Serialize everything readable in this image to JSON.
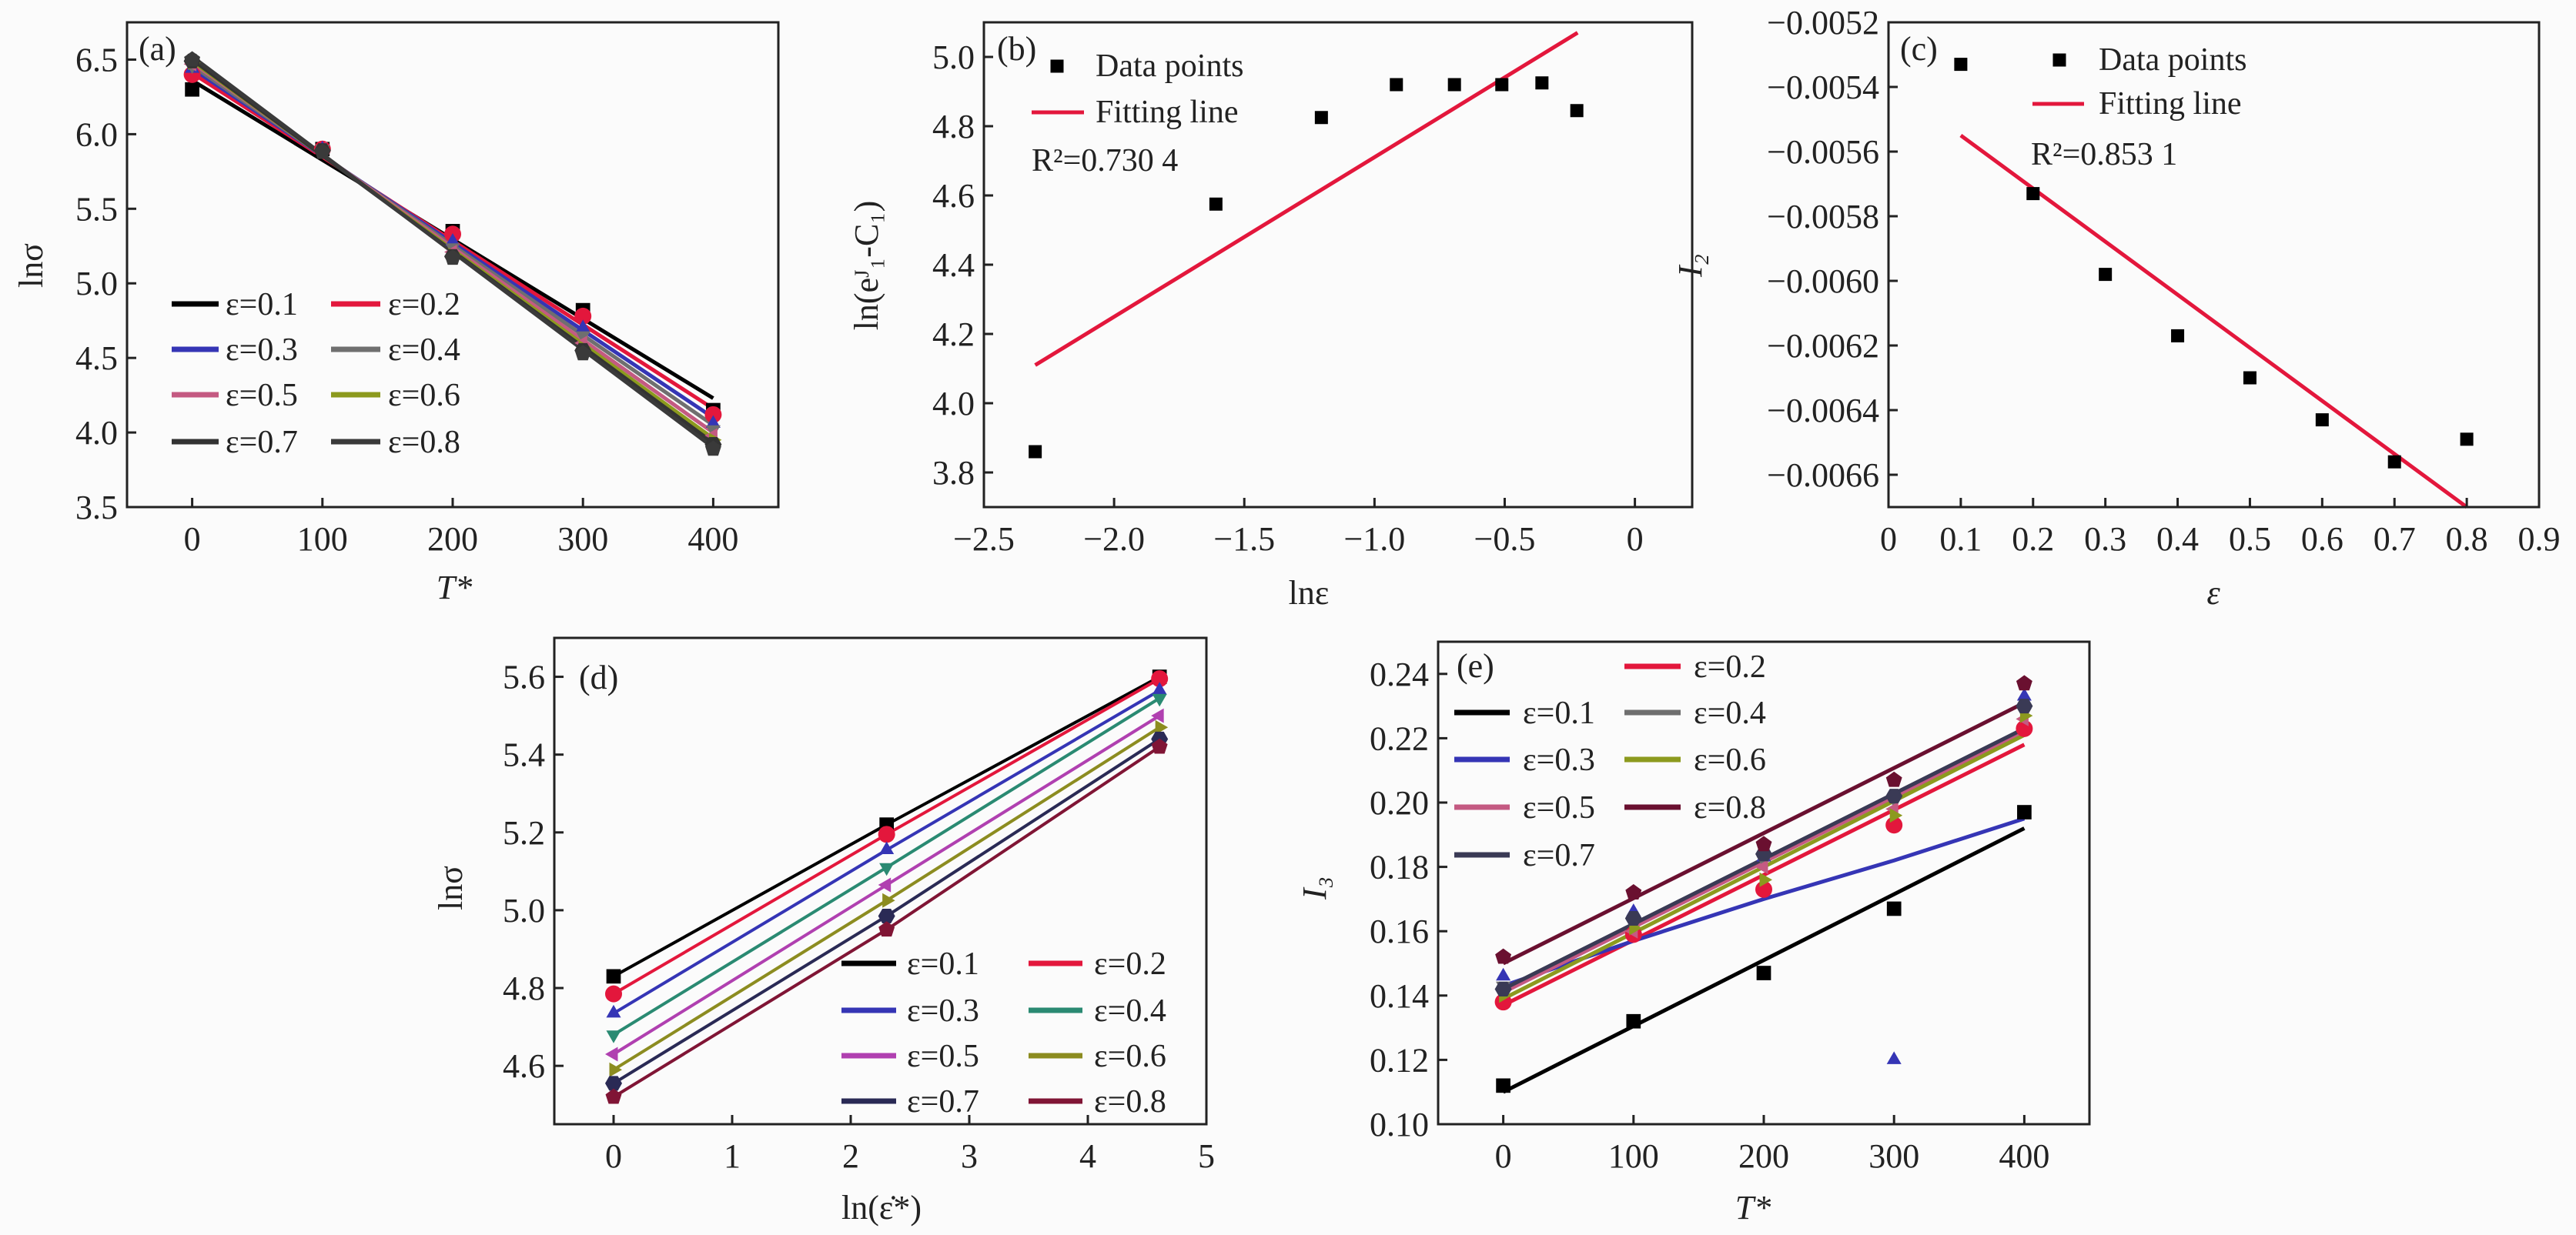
{
  "chart_data": [
    {
      "id": "a",
      "type": "line",
      "panel_label": "(a)",
      "xlabel": "T*",
      "ylabel": "lnσ",
      "xlim": [
        -50,
        450
      ],
      "ylim": [
        3.5,
        6.75
      ],
      "xticks": [
        0,
        100,
        200,
        300,
        400
      ],
      "xtick_labels": [
        "0",
        "100",
        "200",
        "300",
        "400"
      ],
      "yticks": [
        3.5,
        4.0,
        4.5,
        5.0,
        5.5,
        6.0,
        6.5
      ],
      "ytick_labels": [
        "3.5",
        "4.0",
        "4.5",
        "5.0",
        "5.5",
        "6.0",
        "6.5"
      ],
      "legend_placement": "lower-left",
      "x": [
        0,
        100,
        200,
        300,
        400
      ],
      "series": [
        {
          "name": "ε=0.1",
          "color": "#000000",
          "marker": "square",
          "points": [
            6.3,
            5.9,
            5.35,
            4.82,
            4.15
          ],
          "fit": [
            6.36,
            4.23
          ]
        },
        {
          "name": "ε=0.2",
          "color": "#e3173c",
          "marker": "circle",
          "points": [
            6.4,
            5.9,
            5.33,
            4.78,
            4.12
          ],
          "fit": [
            6.41,
            4.16
          ]
        },
        {
          "name": "ε=0.3",
          "color": "#3535b5",
          "marker": "triangle-up",
          "points": [
            6.44,
            5.9,
            5.28,
            4.7,
            4.06
          ],
          "fit": [
            6.44,
            4.1
          ]
        },
        {
          "name": "ε=0.4",
          "color": "#6f6f6f",
          "marker": "triangle-down",
          "points": [
            6.46,
            5.9,
            5.24,
            4.65,
            4.02
          ],
          "fit": [
            6.46,
            4.05
          ]
        },
        {
          "name": "ε=0.5",
          "color": "#c45a82",
          "marker": "triangle-left",
          "points": [
            6.47,
            5.9,
            5.21,
            4.6,
            3.98
          ],
          "fit": [
            6.48,
            4.0
          ]
        },
        {
          "name": "ε=0.6",
          "color": "#8c9a1e",
          "marker": "triangle-right",
          "points": [
            6.48,
            5.89,
            5.19,
            4.57,
            3.95
          ],
          "fit": [
            6.49,
            3.96
          ]
        },
        {
          "name": "ε=0.7",
          "color": "#333333",
          "marker": "hexagon",
          "points": [
            6.49,
            5.89,
            5.18,
            4.55,
            3.92
          ],
          "fit": [
            6.5,
            3.93
          ]
        },
        {
          "name": "ε=0.8",
          "color": "#3a3a3a",
          "marker": "pentagon",
          "points": [
            6.5,
            5.88,
            5.17,
            4.53,
            3.89
          ],
          "fit": [
            6.52,
            3.9
          ]
        }
      ]
    },
    {
      "id": "b",
      "type": "scatter",
      "panel_label": "(b)",
      "xlabel": "lnε",
      "ylabel": "ln(eᴶ₁-C₁)",
      "xlim": [
        -2.5,
        0.22
      ],
      "ylim": [
        3.7,
        5.1
      ],
      "xticks": [
        -2.5,
        -2.0,
        -1.5,
        -1.0,
        -0.5,
        0
      ],
      "xtick_labels": [
        "−2.5",
        "−2.0",
        "−1.5",
        "−1.0",
        "−0.5",
        "0"
      ],
      "yticks": [
        3.8,
        4.0,
        4.2,
        4.4,
        4.6,
        4.8,
        5.0
      ],
      "ytick_labels": [
        "3.8",
        "4.0",
        "4.2",
        "4.4",
        "4.6",
        "4.8",
        "5.0"
      ],
      "legend": [
        "Data points",
        "Fitting line"
      ],
      "annotation": "R²=0.730 4",
      "x": [
        -2.303,
        -1.609,
        -1.204,
        -0.916,
        -0.693,
        -0.511,
        -0.357,
        -0.223
      ],
      "y": [
        3.86,
        4.575,
        4.825,
        4.92,
        4.92,
        4.92,
        4.925,
        4.845
      ],
      "fit": {
        "x": [
          -2.303,
          -0.22
        ],
        "y": [
          4.11,
          5.07
        ],
        "color": "#e3173c"
      }
    },
    {
      "id": "c",
      "type": "scatter",
      "panel_label": "(c)",
      "xlabel": "ε",
      "ylabel": "I₂",
      "xlim": [
        0,
        0.9
      ],
      "ylim": [
        -0.0067,
        -0.0052
      ],
      "xticks": [
        0,
        0.1,
        0.2,
        0.3,
        0.4,
        0.5,
        0.6,
        0.7,
        0.8,
        0.9
      ],
      "xtick_labels": [
        "0",
        "0.1",
        "0.2",
        "0.3",
        "0.4",
        "0.5",
        "0.6",
        "0.7",
        "0.8",
        "0.9"
      ],
      "yticks": [
        -0.0066,
        -0.0064,
        -0.0062,
        -0.006,
        -0.0058,
        -0.0056,
        -0.0054,
        -0.0052
      ],
      "ytick_labels": [
        "−0.0066",
        "−0.0064",
        "−0.0062",
        "−0.0060",
        "−0.0058",
        "−0.0056",
        "−0.0054",
        "−0.0052"
      ],
      "legend": [
        "Data points",
        "Fitting line"
      ],
      "annotation": "R²=0.853 1",
      "x": [
        0.1,
        0.2,
        0.3,
        0.4,
        0.5,
        0.6,
        0.7,
        0.8
      ],
      "y": [
        -0.00533,
        -0.00573,
        -0.00598,
        -0.00617,
        -0.0063,
        -0.00643,
        -0.00656,
        -0.00649
      ],
      "fit": {
        "x": [
          0.1,
          0.8
        ],
        "y": [
          -0.00555,
          -0.0067
        ],
        "color": "#e3173c"
      }
    },
    {
      "id": "d",
      "type": "line",
      "panel_label": "(d)",
      "xlabel": "ln(ε̇*)",
      "ylabel": "lnσ",
      "xlim": [
        -0.5,
        5
      ],
      "ylim": [
        4.45,
        5.7
      ],
      "xticks": [
        0,
        1,
        2,
        3,
        4,
        5
      ],
      "xtick_labels": [
        "0",
        "1",
        "2",
        "3",
        "4",
        "5"
      ],
      "yticks": [
        4.6,
        4.8,
        5.0,
        5.2,
        5.4,
        5.6
      ],
      "ytick_labels": [
        "4.6",
        "4.8",
        "5.0",
        "5.2",
        "5.4",
        "5.6"
      ],
      "legend_placement": "lower-right",
      "x": [
        0,
        2.303,
        4.605
      ],
      "series": [
        {
          "name": "ε=0.1",
          "color": "#000000",
          "marker": "square",
          "points": [
            4.83,
            5.22,
            5.6
          ]
        },
        {
          "name": "ε=0.2",
          "color": "#e3173c",
          "marker": "circle",
          "points": [
            4.785,
            5.195,
            5.595
          ]
        },
        {
          "name": "ε=0.3",
          "color": "#3535b5",
          "marker": "triangle-up",
          "points": [
            4.735,
            5.155,
            5.565
          ]
        },
        {
          "name": "ε=0.4",
          "color": "#2a8a72",
          "marker": "triangle-down",
          "points": [
            4.68,
            5.11,
            5.545
          ]
        },
        {
          "name": "ε=0.5",
          "color": "#b040b0",
          "marker": "triangle-left",
          "points": [
            4.63,
            5.065,
            5.5
          ]
        },
        {
          "name": "ε=0.6",
          "color": "#8c8c20",
          "marker": "triangle-right",
          "points": [
            4.59,
            5.025,
            5.47
          ]
        },
        {
          "name": "ε=0.7",
          "color": "#2a2a55",
          "marker": "hexagon",
          "points": [
            4.555,
            4.985,
            5.44
          ]
        },
        {
          "name": "ε=0.8",
          "color": "#801535",
          "marker": "pentagon",
          "points": [
            4.52,
            4.95,
            5.42
          ]
        }
      ]
    },
    {
      "id": "e",
      "type": "line",
      "panel_label": "(e)",
      "xlabel": "T*",
      "ylabel": "I₃",
      "xlim": [
        -50,
        450
      ],
      "ylim": [
        0.1,
        0.25
      ],
      "xticks": [
        0,
        100,
        200,
        300,
        400
      ],
      "xtick_labels": [
        "0",
        "100",
        "200",
        "300",
        "400"
      ],
      "yticks": [
        0.1,
        0.12,
        0.14,
        0.16,
        0.18,
        0.2,
        0.22,
        0.24
      ],
      "ytick_labels": [
        "0.10",
        "0.12",
        "0.14",
        "0.16",
        "0.18",
        "0.20",
        "0.22",
        "0.24"
      ],
      "legend_placement": "top-left",
      "x": [
        0,
        100,
        200,
        300,
        400
      ],
      "series": [
        {
          "name": "ε=0.1",
          "color": "#000000",
          "marker": "square",
          "points": [
            0.112,
            0.132,
            0.147,
            0.167,
            0.197
          ],
          "fit": [
            0.11,
            0.192
          ]
        },
        {
          "name": "ε=0.2",
          "color": "#e3173c",
          "marker": "circle",
          "points": [
            0.138,
            0.159,
            0.173,
            0.193,
            0.223
          ],
          "fit": [
            0.137,
            0.218
          ]
        },
        {
          "name": "ε=0.3",
          "color": "#3535b5",
          "marker": "triangle-up",
          "points": [
            0.146,
            0.166,
            0.183,
            0.12,
            0.233
          ],
          "fit_path": [
            0.143,
            0.157,
            0.17,
            0.182,
            0.195
          ]
        },
        {
          "name": "ε=0.4",
          "color": "#6f6f6f",
          "marker": "triangle-down",
          "points": [
            0.143,
            0.163,
            0.182,
            0.201,
            0.228
          ],
          "fit": [
            0.142,
            0.223
          ]
        },
        {
          "name": "ε=0.5",
          "color": "#c45a82",
          "marker": "triangle-left",
          "points": [
            0.142,
            0.16,
            0.18,
            0.198,
            0.226
          ],
          "fit": [
            0.141,
            0.222
          ]
        },
        {
          "name": "ε=0.6",
          "color": "#8c9a1e",
          "marker": "triangle-right",
          "points": [
            0.14,
            0.161,
            0.176,
            0.196,
            0.227
          ],
          "fit": [
            0.139,
            0.221
          ]
        },
        {
          "name": "ε=0.7",
          "color": "#3a3a55",
          "marker": "hexagon",
          "points": [
            0.142,
            0.164,
            0.184,
            0.202,
            0.23
          ],
          "fit": [
            0.142,
            0.223
          ]
        },
        {
          "name": "ε=0.8",
          "color": "#6a1030",
          "marker": "pentagon",
          "points": [
            0.152,
            0.172,
            0.187,
            0.207,
            0.237
          ],
          "fit": [
            0.15,
            0.231
          ]
        }
      ]
    }
  ]
}
